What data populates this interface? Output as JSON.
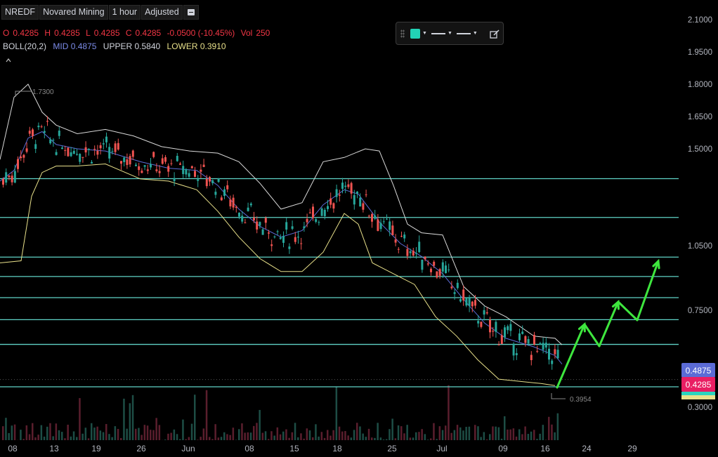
{
  "header": {
    "symbol": "NREDF",
    "name": "Novared Mining",
    "interval": "1 hour",
    "adjustment": "Adjusted",
    "menu_icon": "menu-icon"
  },
  "ohlc": {
    "o_label": "O",
    "o": "0.4285",
    "h_label": "H",
    "h": "0.4285",
    "l_label": "L",
    "l": "0.4285",
    "c_label": "C",
    "c": "0.4285",
    "change": "-0.0500 (-10.45%)",
    "vol_label": "Vol",
    "vol": "250"
  },
  "boll": {
    "name": "BOLL(20,2)",
    "mid": "MID 0.4875",
    "upper": "UPPER 0.5840",
    "lower": "LOWER 0.3910"
  },
  "colors": {
    "up": "#26a69a",
    "down": "#ef5350",
    "mid": "#5b6bd6",
    "band": "#d9d9d9",
    "lower": "#e8e08a",
    "hline": "#5fd3c6",
    "arrow": "#3ee63e",
    "price": "#e91e63",
    "text_down": "#f23645"
  },
  "toolbar": {
    "color": "#22d3b6",
    "icons": [
      "drag-handle-icon",
      "line-style-icon",
      "line-width-icon",
      "edit-icon"
    ]
  },
  "chart_data": {
    "type": "candlestick",
    "series": [
      "price",
      "BOLL mid",
      "BOLL upper",
      "BOLL lower",
      "volume"
    ],
    "y_axis_labels": [
      "2.1000",
      "1.9500",
      "1.8000",
      "1.6500",
      "1.5000",
      "1.0500",
      "0.7500",
      "0.3000"
    ],
    "x_axis_labels": [
      "08",
      "13",
      "19",
      "26",
      "Jun",
      "08",
      "15",
      "18",
      "25",
      "Jul",
      "09",
      "16",
      "24",
      "29"
    ],
    "hlines": [
      "1.3614",
      "1.1812",
      "0.9970",
      "0.9069",
      "0.8086",
      "0.7063",
      "0.5916"
    ],
    "price_tags": {
      "mid": "0.4875",
      "last": "0.4285"
    },
    "high_marker": "1.7300",
    "low_marker": "0.3954",
    "projection": "zigzag up arrows from 0.40 to 1.00"
  }
}
